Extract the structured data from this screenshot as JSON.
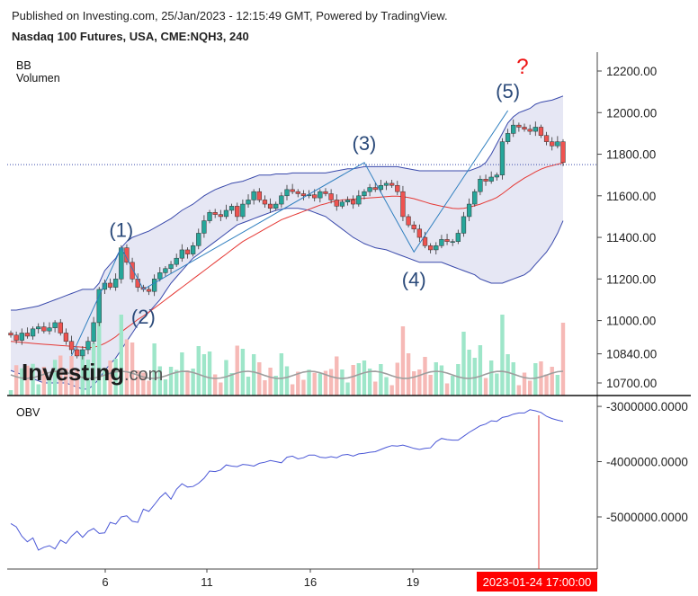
{
  "header": {
    "published": "Published on Investing.com, 25/Jan/2023 - 12:15:49 GMT, Powered by TradingView.",
    "symbol": "Nasdaq 100 Futures, USA, CME:NQH3, 240"
  },
  "panels": {
    "price_labels": [
      "BB",
      "Volumen"
    ],
    "obv_label": "OBV"
  },
  "logo": {
    "text": "Investing",
    "suffix": ".com"
  },
  "cursor_time_label": "2023-01-24 17:00:00",
  "annotations": {
    "waves": [
      "(1)",
      "(2)",
      "(3)",
      "(4)",
      "(5)"
    ],
    "question": "?"
  },
  "colors": {
    "up": "#26a69a",
    "down": "#ef5350",
    "bb_band": "#3949ab",
    "bb_fill": "#e6e7f4",
    "bb_mid": "#e53935",
    "obv": "#4a57d6",
    "wave_line": "#2f7fbf",
    "cursor": "#e53935",
    "vol_up": "#9ee6c9",
    "vol_down": "#f6b9b6"
  },
  "chart_data": [
    {
      "type": "line",
      "name": "price",
      "price_axis_ticks": [
        "12200.00",
        "12000.00",
        "11800.00",
        "11600.00",
        "11400.00",
        "11200.00",
        "11000.00",
        "10840.00",
        "10700.00"
      ],
      "x_tick_labels": [
        "6",
        "11",
        "16",
        "19"
      ],
      "ylim": [
        10670,
        12300
      ],
      "last_price_line": 11750,
      "close": [
        10930,
        10905,
        10940,
        10925,
        10960,
        10970,
        10950,
        10965,
        10990,
        10940,
        10900,
        10860,
        10830,
        10860,
        10900,
        10990,
        11150,
        11180,
        11160,
        11200,
        11350,
        11280,
        11200,
        11160,
        11150,
        11140,
        11200,
        11230,
        11250,
        11270,
        11300,
        11340,
        11320,
        11360,
        11420,
        11480,
        11520,
        11510,
        11500,
        11530,
        11550,
        11500,
        11560,
        11580,
        11620,
        11580,
        11560,
        11540,
        11560,
        11600,
        11630,
        11620,
        11610,
        11600,
        11605,
        11590,
        11620,
        11610,
        11580,
        11550,
        11570,
        11580,
        11560,
        11600,
        11620,
        11640,
        11630,
        11650,
        11660,
        11650,
        11620,
        11500,
        11460,
        11440,
        11400,
        11360,
        11340,
        11360,
        11390,
        11380,
        11380,
        11420,
        11500,
        11560,
        11620,
        11680,
        11670,
        11690,
        11700,
        11860,
        11900,
        11940,
        11930,
        11920,
        11910,
        11930,
        11890,
        11860,
        11840,
        11860,
        11760
      ],
      "bb_upper": [
        11050,
        11050,
        11055,
        11060,
        11065,
        11070,
        11080,
        11090,
        11100,
        11110,
        11120,
        11130,
        11140,
        11150,
        11150,
        11150,
        11180,
        11240,
        11270,
        11300,
        11350,
        11380,
        11400,
        11410,
        11420,
        11430,
        11445,
        11460,
        11475,
        11490,
        11510,
        11530,
        11545,
        11560,
        11580,
        11600,
        11615,
        11630,
        11640,
        11650,
        11660,
        11665,
        11670,
        11680,
        11690,
        11700,
        11700,
        11700,
        11705,
        11705,
        11705,
        11710,
        11710,
        11710,
        11710,
        11710,
        11710,
        11710,
        11715,
        11720,
        11725,
        11730,
        11730,
        11735,
        11740,
        11740,
        11740,
        11740,
        11740,
        11740,
        11740,
        11735,
        11730,
        11725,
        11720,
        11720,
        11720,
        11720,
        11720,
        11720,
        11720,
        11720,
        11720,
        11720,
        11730,
        11740,
        11760,
        11800,
        11850,
        11900,
        11950,
        11980,
        12000,
        12010,
        12020,
        12040,
        12050,
        12055,
        12060,
        12070,
        12080
      ],
      "bb_lower": [
        10760,
        10750,
        10740,
        10730,
        10720,
        10710,
        10700,
        10700,
        10700,
        10700,
        10700,
        10690,
        10680,
        10670,
        10670,
        10690,
        10720,
        10760,
        10790,
        10820,
        10860,
        10900,
        10940,
        10980,
        11010,
        11040,
        11070,
        11100,
        11140,
        11180,
        11210,
        11240,
        11270,
        11300,
        11320,
        11340,
        11360,
        11380,
        11400,
        11420,
        11440,
        11460,
        11470,
        11480,
        11490,
        11500,
        11510,
        11520,
        11530,
        11535,
        11540,
        11540,
        11540,
        11535,
        11530,
        11520,
        11510,
        11500,
        11480,
        11460,
        11440,
        11420,
        11400,
        11385,
        11370,
        11360,
        11350,
        11345,
        11340,
        11330,
        11320,
        11310,
        11300,
        11290,
        11280,
        11280,
        11280,
        11280,
        11280,
        11270,
        11260,
        11250,
        11240,
        11230,
        11220,
        11200,
        11190,
        11180,
        11180,
        11180,
        11190,
        11200,
        11210,
        11220,
        11240,
        11270,
        11300,
        11330,
        11370,
        11420,
        11480
      ],
      "bb_middle": [
        10900,
        10898,
        10895,
        10893,
        10890,
        10888,
        10886,
        10884,
        10882,
        10880,
        10878,
        10876,
        10874,
        10872,
        10870,
        10872,
        10878,
        10890,
        10905,
        10922,
        10945,
        10965,
        10985,
        11005,
        11022,
        11040,
        11060,
        11080,
        11100,
        11120,
        11140,
        11160,
        11180,
        11200,
        11220,
        11240,
        11260,
        11280,
        11300,
        11320,
        11340,
        11360,
        11380,
        11395,
        11410,
        11425,
        11440,
        11455,
        11470,
        11485,
        11495,
        11505,
        11515,
        11525,
        11535,
        11545,
        11555,
        11562,
        11570,
        11575,
        11580,
        11582,
        11584,
        11586,
        11588,
        11590,
        11592,
        11594,
        11596,
        11598,
        11598,
        11596,
        11592,
        11586,
        11578,
        11570,
        11562,
        11556,
        11550,
        11545,
        11540,
        11538,
        11540,
        11545,
        11552,
        11560,
        11570,
        11580,
        11592,
        11610,
        11630,
        11650,
        11668,
        11685,
        11700,
        11715,
        11728,
        11738,
        11745,
        11752,
        11758
      ]
    },
    {
      "type": "line",
      "name": "OBV",
      "y_tick_labels": [
        "-3000000.0000",
        "-4000000.0000",
        "-5000000.0000"
      ],
      "ylim": [
        -6000000,
        -2950000
      ],
      "values": [
        -5120000,
        -5180000,
        -5350000,
        -5450000,
        -5380000,
        -5600000,
        -5550000,
        -5520000,
        -5580000,
        -5420000,
        -5480000,
        -5350000,
        -5260000,
        -5370000,
        -5260000,
        -5210000,
        -5300000,
        -5290000,
        -5100000,
        -5130000,
        -5000000,
        -4980000,
        -5080000,
        -5100000,
        -4860000,
        -4900000,
        -4780000,
        -4650000,
        -4560000,
        -4680000,
        -4500000,
        -4400000,
        -4460000,
        -4450000,
        -4390000,
        -4300000,
        -4170000,
        -4180000,
        -4150000,
        -4060000,
        -4080000,
        -4090000,
        -4050000,
        -4060000,
        -4080000,
        -4030000,
        -4010000,
        -3980000,
        -4000000,
        -4020000,
        -3920000,
        -3900000,
        -3950000,
        -3930000,
        -3880000,
        -3880000,
        -3920000,
        -3930000,
        -3910000,
        -3930000,
        -3880000,
        -3870000,
        -3900000,
        -3860000,
        -3850000,
        -3830000,
        -3820000,
        -3780000,
        -3740000,
        -3710000,
        -3720000,
        -3700000,
        -3730000,
        -3760000,
        -3780000,
        -3760000,
        -3750000,
        -3640000,
        -3580000,
        -3600000,
        -3610000,
        -3610000,
        -3540000,
        -3470000,
        -3410000,
        -3350000,
        -3320000,
        -3260000,
        -3270000,
        -3200000,
        -3180000,
        -3140000,
        -3120000,
        -3120000,
        -3060000,
        -3080000,
        -3110000,
        -3180000,
        -3220000,
        -3250000,
        -3270000
      ]
    }
  ]
}
